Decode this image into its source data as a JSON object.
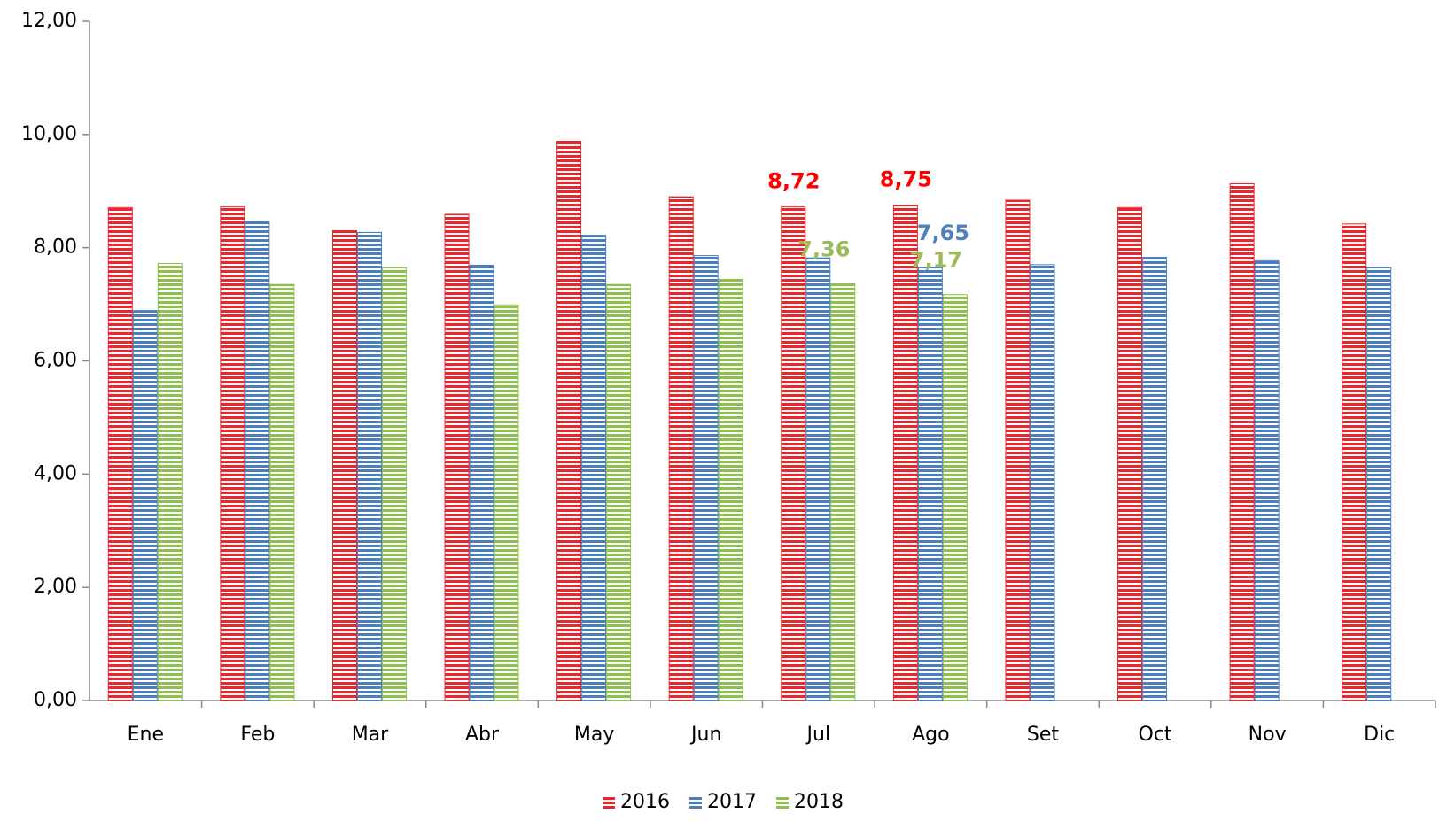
{
  "chart_data": {
    "type": "bar",
    "categories": [
      "Ene",
      "Feb",
      "Mar",
      "Abr",
      "May",
      "Jun",
      "Jul",
      "Ago",
      "Set",
      "Oct",
      "Nov",
      "Dic"
    ],
    "series": [
      {
        "name": "2016",
        "color": "#e8262b",
        "label_color": "#ff0000",
        "values": [
          8.71,
          8.72,
          8.3,
          8.59,
          9.88,
          8.9,
          8.72,
          8.75,
          8.84,
          8.71,
          9.13,
          8.42
        ],
        "value_labels": [
          null,
          null,
          null,
          null,
          null,
          null,
          "8,72",
          "8,75",
          null,
          null,
          null,
          null
        ]
      },
      {
        "name": "2017",
        "color": "#4a7ebf",
        "label_color": "#4f81bd",
        "values": [
          6.89,
          8.46,
          8.27,
          7.69,
          8.22,
          7.86,
          7.82,
          7.65,
          7.7,
          7.83,
          7.77,
          7.65
        ],
        "value_labels": [
          null,
          null,
          null,
          null,
          null,
          null,
          null,
          "7,65",
          null,
          null,
          null,
          null
        ]
      },
      {
        "name": "2018",
        "color": "#8fc04f",
        "label_color": "#9bbb59",
        "values": [
          7.72,
          7.35,
          7.65,
          6.99,
          7.35,
          7.44,
          7.36,
          7.17,
          null,
          null,
          null,
          null
        ],
        "value_labels": [
          null,
          null,
          null,
          null,
          null,
          null,
          "7,36",
          "7,17",
          null,
          null,
          null,
          null
        ]
      }
    ],
    "ylim": [
      0,
      12
    ],
    "yticks": [
      {
        "value": 0,
        "label": "0,00"
      },
      {
        "value": 2,
        "label": "2,00"
      },
      {
        "value": 4,
        "label": "4,00"
      },
      {
        "value": 6,
        "label": "6,00"
      },
      {
        "value": 8,
        "label": "8,00"
      },
      {
        "value": 10,
        "label": "10,00"
      },
      {
        "value": 12,
        "label": "12,00"
      }
    ],
    "legend": "bottom"
  }
}
